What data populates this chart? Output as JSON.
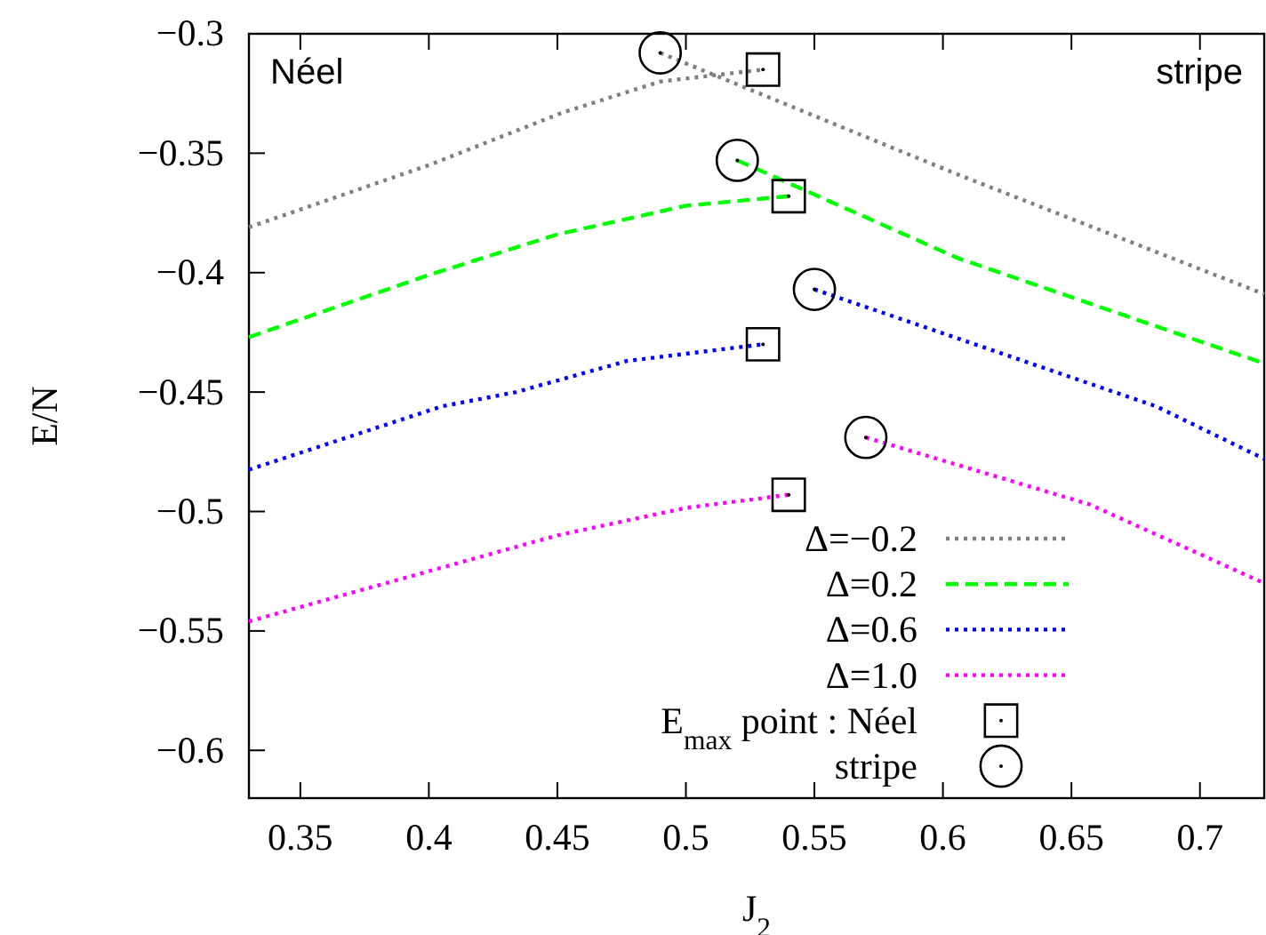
{
  "chart_data": {
    "type": "line",
    "xlabel": "J$_{2}$",
    "ylabel": "E/N",
    "xlim": [
      0.33,
      0.725
    ],
    "ylim": [
      -0.62,
      -0.3
    ],
    "xticks": [
      0.35,
      0.4,
      0.45,
      0.5,
      0.55,
      0.6,
      0.65,
      0.7
    ],
    "yticks": [
      {
        "value": -0.3,
        "label": "−0.3"
      },
      {
        "value": -0.35,
        "label": "−0.35"
      },
      {
        "value": -0.4,
        "label": "−0.4"
      },
      {
        "value": -0.45,
        "label": "−0.45"
      },
      {
        "value": -0.5,
        "label": "−0.5"
      },
      {
        "value": -0.55,
        "label": "−0.55"
      },
      {
        "value": -0.6,
        "label": "−0.6"
      }
    ],
    "grid": false,
    "legend": "bottom right",
    "annotations": [
      "Néel",
      "stripe"
    ],
    "series": [
      {
        "name": "Δ=−0.2",
        "color": "#808080",
        "line_style": "dotted",
        "marker": "none",
        "x": [
          0.33,
          0.4,
          0.452,
          0.49,
          0.53,
          null,
          0.49,
          0.606,
          0.725
        ],
        "values": [
          -0.381,
          -0.355,
          -0.333,
          -0.32,
          -0.315,
          null,
          -0.308,
          -0.359,
          -0.409
        ]
      },
      {
        "name": "Δ=0.2",
        "color": "#00ff00",
        "line_style": "dashed",
        "marker": "none",
        "x": [
          0.33,
          0.4,
          0.45,
          0.5,
          0.54,
          null,
          0.52,
          0.606,
          0.725
        ],
        "values": [
          -0.427,
          -0.401,
          -0.384,
          -0.372,
          -0.368,
          null,
          -0.353,
          -0.394,
          -0.438
        ]
      },
      {
        "name": "Δ=0.6",
        "color": "#0000ff",
        "line_style": "dotted",
        "marker": "none",
        "x": [
          0.33,
          0.405,
          0.434,
          0.477,
          0.53,
          null,
          0.55,
          0.683,
          0.725
        ],
        "values": [
          -0.4825,
          -0.456,
          -0.45,
          -0.437,
          -0.43,
          null,
          -0.407,
          -0.456,
          -0.478
        ]
      },
      {
        "name": "Δ=1.0",
        "color": "#ff00ff",
        "line_style": "dotted",
        "marker": "none",
        "x": [
          0.33,
          0.4,
          0.45,
          0.5,
          0.54,
          null,
          0.57,
          0.657,
          0.725
        ],
        "values": [
          -0.546,
          -0.525,
          -0.51,
          -0.4985,
          -0.493,
          null,
          -0.469,
          -0.497,
          -0.53
        ]
      },
      {
        "name": "E$_{max}$ point : Néel",
        "type": "scatter",
        "color": "#000000",
        "marker": "square",
        "x": [
          0.53,
          0.54,
          0.53,
          0.54
        ],
        "values": [
          -0.315,
          -0.368,
          -0.43,
          -0.493
        ]
      },
      {
        "name": "stripe",
        "type": "scatter",
        "color": "#000000",
        "marker": "circle",
        "x": [
          0.49,
          0.52,
          0.55,
          0.57
        ],
        "values": [
          -0.308,
          -0.353,
          -0.407,
          -0.469
        ]
      }
    ]
  }
}
